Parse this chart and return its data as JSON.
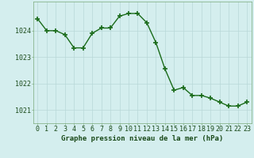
{
  "x": [
    0,
    1,
    2,
    3,
    4,
    5,
    6,
    7,
    8,
    9,
    10,
    11,
    12,
    13,
    14,
    15,
    16,
    17,
    18,
    19,
    20,
    21,
    22,
    23
  ],
  "y": [
    1024.45,
    1024.0,
    1024.0,
    1023.85,
    1023.35,
    1023.35,
    1023.9,
    1024.1,
    1024.1,
    1024.55,
    1024.65,
    1024.65,
    1024.3,
    1023.55,
    1022.55,
    1021.75,
    1021.85,
    1021.55,
    1021.55,
    1021.45,
    1021.3,
    1021.15,
    1021.15,
    1021.3
  ],
  "line_color": "#1a6b1a",
  "marker": "+",
  "marker_size": 4,
  "marker_linewidth": 1.2,
  "line_width": 1.0,
  "background_color": "#d4eeee",
  "grid_color": "#b8d8d8",
  "xlabel": "Graphe pression niveau de la mer (hPa)",
  "xlabel_fontsize": 6.5,
  "tick_fontsize": 6,
  "ytick_labels": [
    1021,
    1022,
    1023,
    1024
  ],
  "ylim": [
    1020.5,
    1025.1
  ],
  "xlim": [
    -0.5,
    23.5
  ],
  "figsize": [
    3.2,
    2.0
  ],
  "dpi": 100
}
